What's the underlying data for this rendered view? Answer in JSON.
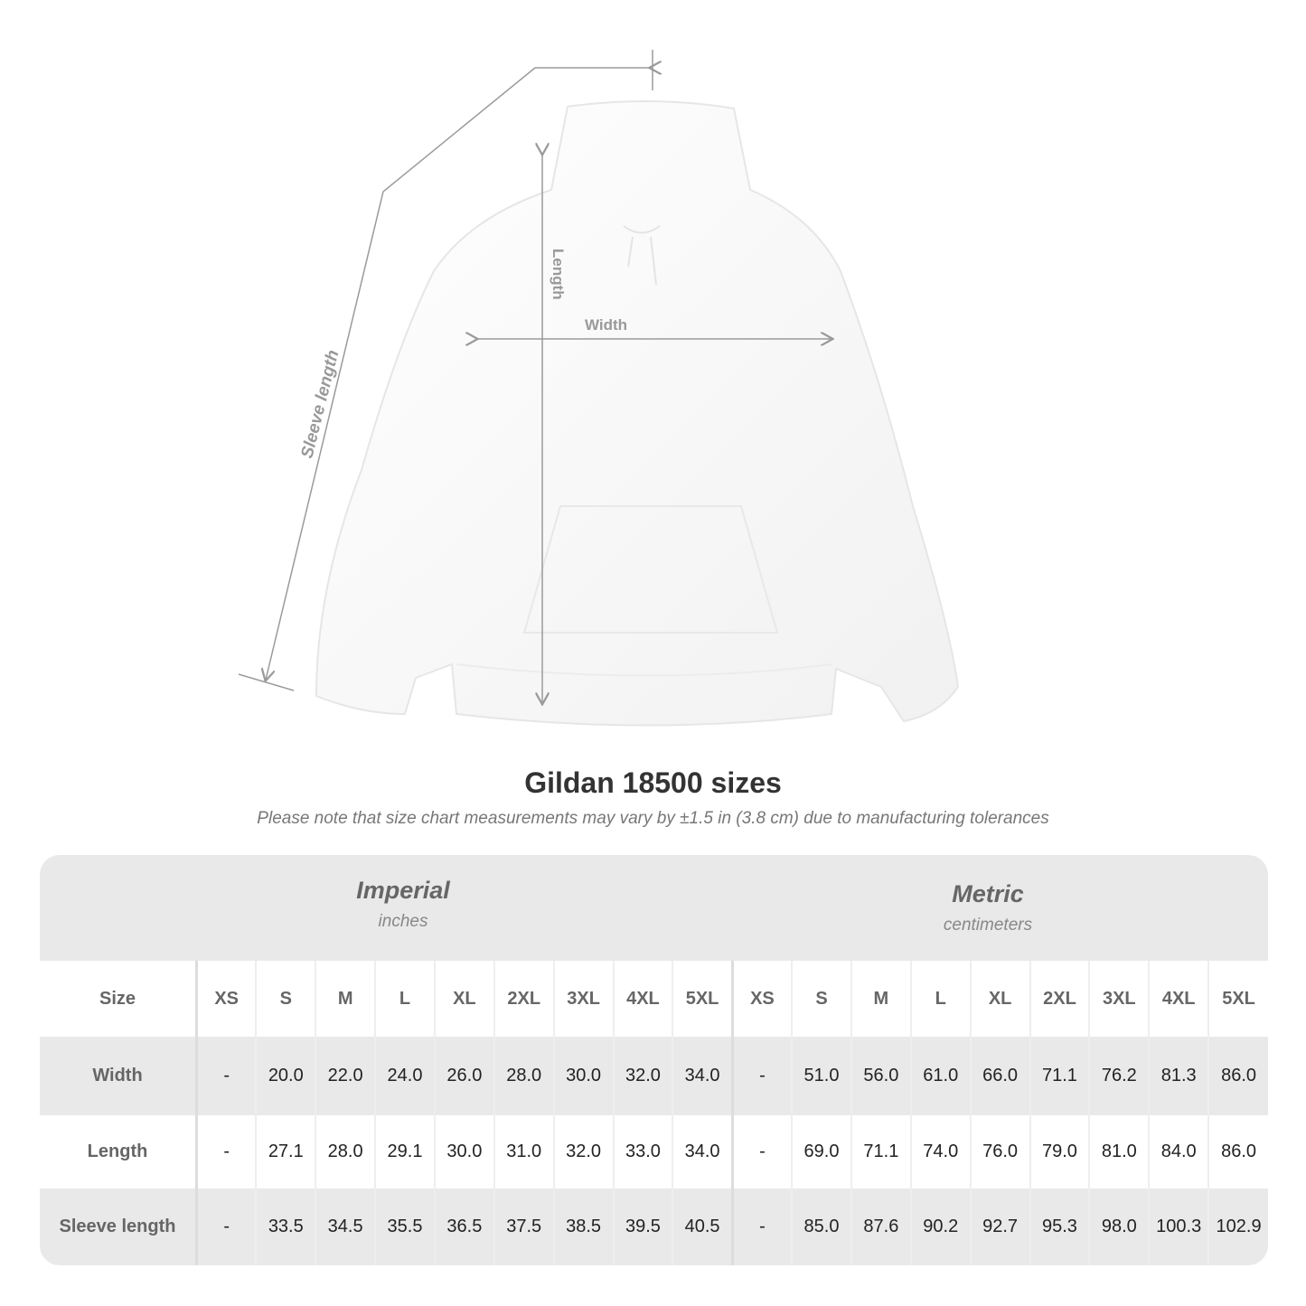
{
  "diagram": {
    "labels": {
      "length": "Length",
      "width": "Width",
      "sleeve": "Sleeve length"
    },
    "line_color": "#9a9a9a"
  },
  "title": "Gildan 18500 sizes",
  "subtitle": "Please note that size chart measurements may vary by ±1.5 in (3.8 cm) due to manufacturing tolerances",
  "imperial": {
    "title": "Imperial",
    "unit": "inches"
  },
  "metric": {
    "title": "Metric",
    "unit": "centimeters"
  },
  "table": {
    "size_label": "Size",
    "sizes": [
      "XS",
      "S",
      "M",
      "L",
      "XL",
      "2XL",
      "3XL",
      "4XL",
      "5XL"
    ],
    "rows": [
      {
        "label": "Width",
        "imperial": [
          "-",
          "20.0",
          "22.0",
          "24.0",
          "26.0",
          "28.0",
          "30.0",
          "32.0",
          "34.0"
        ],
        "metric": [
          "-",
          "51.0",
          "56.0",
          "61.0",
          "66.0",
          "71.1",
          "76.2",
          "81.3",
          "86.0"
        ]
      },
      {
        "label": "Length",
        "imperial": [
          "-",
          "27.1",
          "28.0",
          "29.1",
          "30.0",
          "31.0",
          "32.0",
          "33.0",
          "34.0"
        ],
        "metric": [
          "-",
          "69.0",
          "71.1",
          "74.0",
          "76.0",
          "79.0",
          "81.0",
          "84.0",
          "86.0"
        ]
      },
      {
        "label": "Sleeve length",
        "imperial": [
          "-",
          "33.5",
          "34.5",
          "35.5",
          "36.5",
          "37.5",
          "38.5",
          "39.5",
          "40.5"
        ],
        "metric": [
          "-",
          "85.0",
          "87.6",
          "90.2",
          "92.7",
          "95.3",
          "98.0",
          "100.3",
          "102.9"
        ]
      }
    ]
  }
}
